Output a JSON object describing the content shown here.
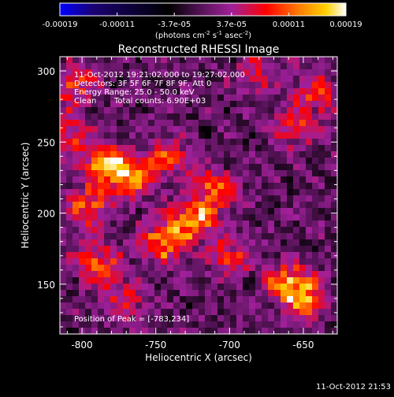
{
  "colorbar": {
    "ticks": [
      "-0.00019",
      "-0.00011",
      "-3.7e-05",
      "3.7e-05",
      "0.00011",
      "0.00019"
    ],
    "units_main": "(photons cm",
    "units_sup1": "-2",
    "units_mid1": " s",
    "units_sup2": "-1",
    "units_mid2": " asec",
    "units_sup3": "-2",
    "units_end": ")",
    "colors": [
      "#0000ff",
      "#1a0070",
      "#000000",
      "#6a1a6a",
      "#a0209a",
      "#ff0000",
      "#ff8000",
      "#ffd000",
      "#ffffff"
    ]
  },
  "chart_data": {
    "type": "heatmap",
    "title": "Reconstructed RHESSI Image",
    "xlabel": "Heliocentric X (arcsec)",
    "ylabel": "Heliocentric Y (arcsec)",
    "xlim": [
      -815,
      -627
    ],
    "ylim": [
      115,
      310
    ],
    "xticks": [
      -800,
      -750,
      -700,
      -650
    ],
    "yticks": [
      150,
      200,
      250,
      300
    ],
    "annotations": {
      "time_range": "11-Oct-2012 19:21:02.000 to 19:27:02.000",
      "detectors": "Detectors: 3F 5F 6F 7F 8F 9F, Att 0",
      "energy": "Energy Range: 25.0 - 50.0 keV",
      "clean": "Clean",
      "counts": "Total counts: 6.90E+03",
      "peak": "Position of Peak = [-783,234]"
    },
    "peak": [
      -783,
      234
    ],
    "sources": [
      {
        "x": -783,
        "y": 234,
        "amp": 1.0
      },
      {
        "x": -765,
        "y": 225,
        "amp": 0.8
      },
      {
        "x": -795,
        "y": 205,
        "amp": 0.75
      },
      {
        "x": -790,
        "y": 165,
        "amp": 0.7
      },
      {
        "x": -745,
        "y": 180,
        "amp": 0.8
      },
      {
        "x": -725,
        "y": 195,
        "amp": 0.85
      },
      {
        "x": -710,
        "y": 215,
        "amp": 0.7
      },
      {
        "x": -740,
        "y": 240,
        "amp": 0.55
      },
      {
        "x": -660,
        "y": 150,
        "amp": 0.8
      },
      {
        "x": -650,
        "y": 140,
        "amp": 0.7
      },
      {
        "x": -640,
        "y": 285,
        "amp": 0.55
      },
      {
        "x": -655,
        "y": 260,
        "amp": 0.5
      },
      {
        "x": -805,
        "y": 290,
        "amp": 0.6
      },
      {
        "x": -810,
        "y": 255,
        "amp": 0.55
      },
      {
        "x": -680,
        "y": 300,
        "amp": 0.4
      },
      {
        "x": -700,
        "y": 170,
        "amp": 0.5
      },
      {
        "x": -770,
        "y": 140,
        "amp": 0.45
      }
    ]
  },
  "footer": {
    "timestamp": "11-Oct-2012 21:53"
  }
}
